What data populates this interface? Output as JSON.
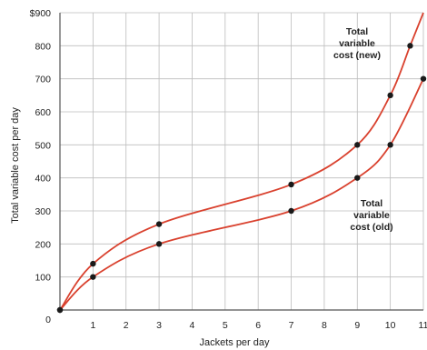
{
  "chart_data": {
    "type": "line",
    "title": "",
    "xlabel": "Jackets per day",
    "ylabel": "Total variable cost per day",
    "xlim": [
      0,
      11
    ],
    "ylim": [
      0,
      900
    ],
    "x_ticks": [
      1,
      2,
      3,
      4,
      5,
      6,
      7,
      8,
      9,
      10,
      11
    ],
    "y_ticks": [
      0,
      100,
      200,
      300,
      400,
      500,
      600,
      700,
      800,
      900
    ],
    "y_tick_labels": [
      "0",
      "100",
      "200",
      "300",
      "400",
      "500",
      "600",
      "700",
      "800",
      "$900"
    ],
    "grid": true,
    "series": [
      {
        "name": "Total variable cost (new)",
        "label_lines": [
          "Total",
          "variable",
          "cost (new)"
        ],
        "color": "#d9412e",
        "points": [
          [
            0,
            0
          ],
          [
            1,
            140
          ],
          [
            3,
            260
          ],
          [
            7,
            380
          ],
          [
            9,
            500
          ],
          [
            10,
            650
          ],
          [
            10.6,
            800
          ],
          [
            11,
            900
          ]
        ],
        "marked_points": [
          [
            0,
            0
          ],
          [
            1,
            140
          ],
          [
            3,
            260
          ],
          [
            7,
            380
          ],
          [
            9,
            500
          ],
          [
            10,
            650
          ],
          [
            10.6,
            800
          ]
        ]
      },
      {
        "name": "Total variable cost (old)",
        "label_lines": [
          "Total",
          "variable",
          "cost (old)"
        ],
        "color": "#d9412e",
        "points": [
          [
            0,
            0
          ],
          [
            1,
            100
          ],
          [
            3,
            200
          ],
          [
            7,
            300
          ],
          [
            9,
            400
          ],
          [
            10,
            500
          ],
          [
            11,
            700
          ]
        ],
        "marked_points": [
          [
            0,
            0
          ],
          [
            1,
            100
          ],
          [
            3,
            200
          ],
          [
            7,
            300
          ],
          [
            9,
            400
          ],
          [
            10,
            500
          ],
          [
            11,
            700
          ]
        ]
      }
    ]
  }
}
